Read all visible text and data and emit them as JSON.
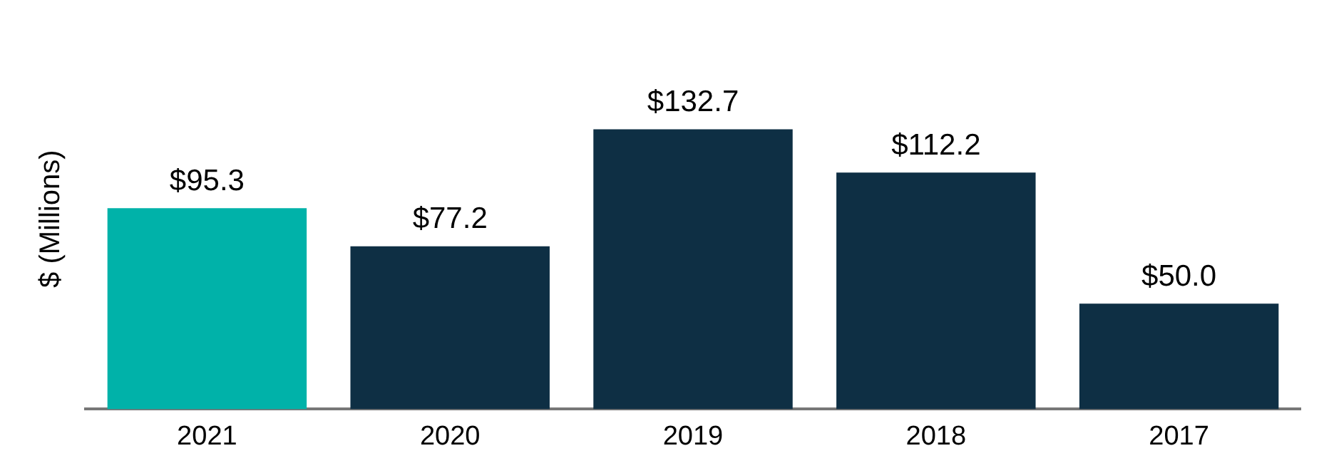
{
  "chart_data": {
    "type": "bar",
    "ylabel": "$ (Millions)",
    "categories": [
      "2021",
      "2020",
      "2019",
      "2018",
      "2017"
    ],
    "values": [
      95.3,
      77.2,
      132.7,
      112.2,
      50.0
    ],
    "colors": [
      "#00b2a9",
      "#0e2f44",
      "#0e2f44",
      "#0e2f44",
      "#0e2f44"
    ],
    "data_labels": true,
    "value_labels": [
      "$95.3",
      "$77.2",
      "$132.7",
      "$112.2",
      "$50.0"
    ],
    "tick_labels": "x"
  }
}
